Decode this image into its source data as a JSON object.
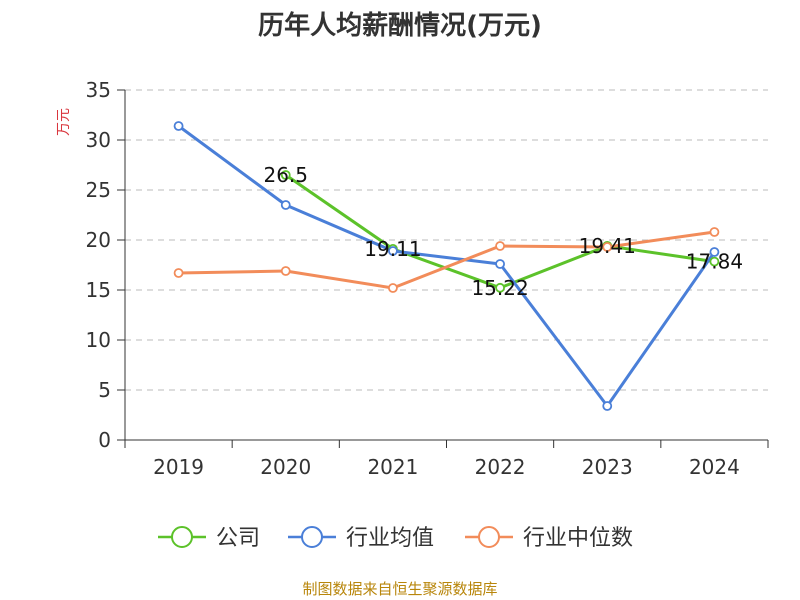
{
  "chart_data": {
    "type": "line",
    "title": "历年人均薪酬情况(万元)",
    "ylabel": "万元",
    "xlabel": "",
    "categories": [
      "2019",
      "2020",
      "2021",
      "2022",
      "2023",
      "2024"
    ],
    "ylim": [
      0,
      35
    ],
    "yticks": [
      0,
      5,
      10,
      15,
      20,
      25,
      30,
      35
    ],
    "grid": true,
    "legend_position": "bottom",
    "series": [
      {
        "name": "公司",
        "color": "#5cc22a",
        "values": [
          null,
          26.5,
          19.11,
          15.22,
          19.41,
          17.84
        ],
        "labels": [
          null,
          "26.5",
          "19.11",
          "15.22",
          "19.41",
          "17.84"
        ]
      },
      {
        "name": "行业均值",
        "color": "#4a7fd8",
        "values": [
          31.4,
          23.5,
          18.9,
          17.6,
          3.4,
          18.8
        ]
      },
      {
        "name": "行业中位数",
        "color": "#f28c5a",
        "values": [
          16.7,
          16.9,
          15.2,
          19.4,
          19.3,
          20.8
        ]
      }
    ]
  },
  "source_text": "制图数据来自恒生聚源数据库"
}
